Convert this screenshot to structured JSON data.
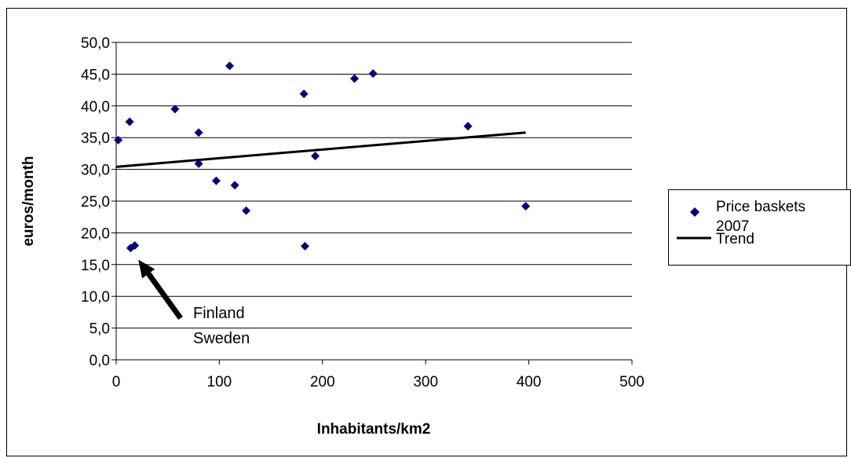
{
  "chart_data": {
    "type": "scatter",
    "xlabel": "Inhabitants/km2",
    "ylabel": "euros/month",
    "xlim": [
      0,
      500
    ],
    "ylim": [
      0,
      50
    ],
    "x_ticks": [
      "0",
      "100",
      "200",
      "300",
      "400",
      "500"
    ],
    "y_ticks": [
      "0,0",
      "5,0",
      "10,0",
      "15,0",
      "20,0",
      "25,0",
      "30,0",
      "35,0",
      "40,0",
      "45,0",
      "50,0"
    ],
    "grid": "horizontal",
    "legend_position": "right",
    "series": [
      {
        "name": "Price baskets 2007",
        "marker": "diamond",
        "color": "#000080",
        "points": [
          {
            "x": 2,
            "y": 34.6
          },
          {
            "x": 13,
            "y": 37.5
          },
          {
            "x": 14,
            "y": 17.6
          },
          {
            "x": 18,
            "y": 18.0
          },
          {
            "x": 57,
            "y": 39.5
          },
          {
            "x": 80,
            "y": 35.8
          },
          {
            "x": 80,
            "y": 30.9
          },
          {
            "x": 97,
            "y": 28.2
          },
          {
            "x": 110,
            "y": 46.3
          },
          {
            "x": 115,
            "y": 27.5
          },
          {
            "x": 126,
            "y": 23.5
          },
          {
            "x": 182,
            "y": 41.9
          },
          {
            "x": 183,
            "y": 17.9
          },
          {
            "x": 193,
            "y": 32.1
          },
          {
            "x": 231,
            "y": 44.3
          },
          {
            "x": 249,
            "y": 45.1
          },
          {
            "x": 341,
            "y": 36.8
          },
          {
            "x": 397,
            "y": 24.2
          }
        ]
      },
      {
        "name": "Trend",
        "type": "line",
        "color": "#000000",
        "points": [
          {
            "x": 0,
            "y": 30.4
          },
          {
            "x": 397,
            "y": 35.8
          }
        ]
      }
    ],
    "annotations": [
      {
        "lines": [
          "Finland",
          "Sweden"
        ],
        "arrow_to": {
          "x": 20,
          "y": 17.0
        }
      }
    ]
  }
}
